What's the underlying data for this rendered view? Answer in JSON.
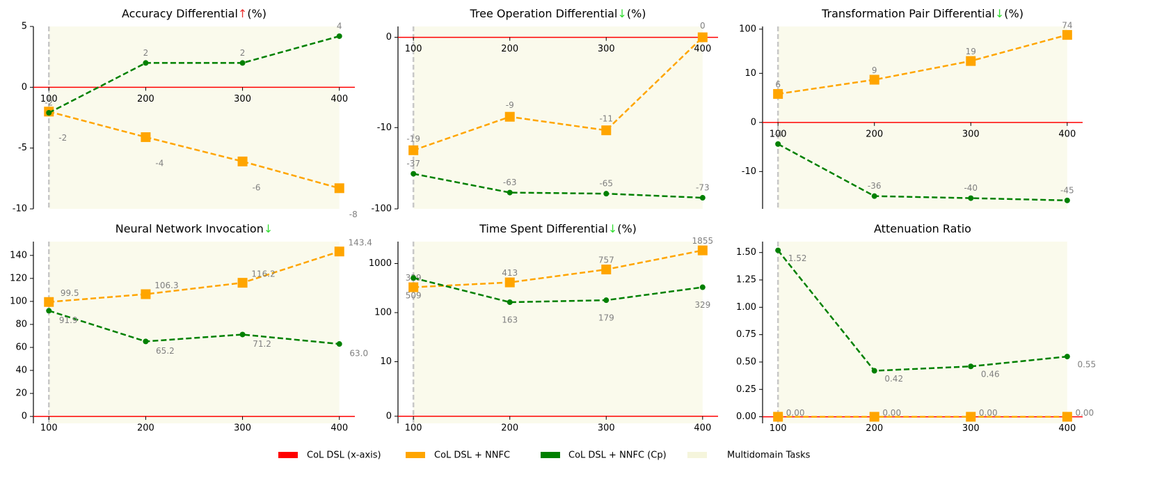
{
  "chart_data": [
    {
      "type": "line",
      "title": "Accuracy Differential",
      "title_arrow": "↑",
      "title_arrow_color": "#e8312f",
      "title_unit": "(%)",
      "x": [
        100,
        200,
        300,
        400
      ],
      "xlim": [
        84,
        416
      ],
      "xticks": [
        100,
        200,
        300,
        400
      ],
      "span": [
        100,
        400
      ],
      "vline": 100,
      "yscale": "linear",
      "ylim": [
        -10,
        5
      ],
      "yticks": [
        -10,
        -5,
        0,
        5
      ],
      "series": [
        {
          "color": "#ffa500",
          "marker": "square",
          "values": [
            -2,
            -4.1,
            -6.1,
            -8.3
          ],
          "value_labels": [
            "-2",
            "-4",
            "-6",
            "-8"
          ]
        },
        {
          "color": "#008000",
          "marker": "circle",
          "values": [
            -2.1,
            2,
            2,
            4.2
          ],
          "value_labels": [
            "-2",
            "2",
            "2",
            "4"
          ]
        }
      ]
    },
    {
      "type": "line",
      "title": "Tree Operation Differential",
      "title_arrow": "↓",
      "title_arrow_color": "#33dd33",
      "title_unit": "(%)",
      "x": [
        100,
        200,
        300,
        400
      ],
      "xlim": [
        84,
        416
      ],
      "xticks": [
        100,
        200,
        300,
        400
      ],
      "span": [
        100,
        400
      ],
      "vline": 100,
      "yscale": "symlog",
      "linthresh": 10,
      "ylim": [
        -100,
        1.2
      ],
      "yticks": [
        -100,
        -10,
        0
      ],
      "series": [
        {
          "color": "#ffa500",
          "marker": "square",
          "values": [
            -19,
            -8.8,
            -10.8,
            0
          ],
          "value_labels": [
            "-19",
            "-9",
            "-11",
            "0"
          ]
        },
        {
          "color": "#008000",
          "marker": "circle",
          "values": [
            -37,
            -63,
            -65,
            -73
          ],
          "value_labels": [
            "-37",
            "-63",
            "-65",
            "-73"
          ]
        }
      ]
    },
    {
      "type": "line",
      "title": "Transformation Pair Differential",
      "title_arrow": "↓",
      "title_arrow_color": "#33dd33",
      "title_unit": "(%)",
      "x": [
        100,
        200,
        300,
        400
      ],
      "xlim": [
        84,
        416
      ],
      "xticks": [
        100,
        200,
        300,
        400
      ],
      "span": [
        100,
        400
      ],
      "vline": 100,
      "yscale": "symlog",
      "linthresh": 10,
      "ylim": [
        -70,
        115
      ],
      "yticks": [
        -10,
        0,
        10,
        100
      ],
      "series": [
        {
          "color": "#ffa500",
          "marker": "square",
          "values": [
            5.8,
            8.7,
            19,
            74
          ],
          "value_labels": [
            "6",
            "9",
            "19",
            "74"
          ]
        },
        {
          "color": "#008000",
          "marker": "circle",
          "values": [
            -4.4,
            -36,
            -40,
            -45
          ],
          "value_labels": [
            "-4",
            "-36",
            "-40",
            "-45"
          ]
        }
      ]
    },
    {
      "type": "line",
      "title": "Neural Network Invocation",
      "title_arrow": "↓",
      "title_arrow_color": "#33dd33",
      "x": [
        100,
        200,
        300,
        400
      ],
      "xlim": [
        84,
        416
      ],
      "xticks": [
        100,
        200,
        300,
        400
      ],
      "span": [
        100,
        400
      ],
      "vline": 100,
      "yscale": "linear",
      "ylim": [
        -6,
        152
      ],
      "yticks": [
        0,
        20,
        40,
        60,
        80,
        100,
        120,
        140
      ],
      "series": [
        {
          "color": "#ffa500",
          "marker": "square",
          "values": [
            99.5,
            106.3,
            116.2,
            143.4
          ],
          "value_labels": [
            "99.5",
            "106.3",
            "116.2",
            "143.4"
          ]
        },
        {
          "color": "#008000",
          "marker": "circle",
          "values": [
            91.9,
            65.2,
            71.2,
            63.0
          ],
          "value_labels": [
            "91.9",
            "65.2",
            "71.2",
            "63.0"
          ]
        }
      ]
    },
    {
      "type": "line",
      "title": "Time Spent Differential",
      "title_arrow": "↓",
      "title_arrow_color": "#33dd33",
      "title_unit": "(%)",
      "x": [
        100,
        200,
        300,
        400
      ],
      "xlim": [
        84,
        416
      ],
      "xticks": [
        100,
        200,
        300,
        400
      ],
      "span": [
        100,
        400
      ],
      "vline": 100,
      "yscale": "symlog",
      "linthresh": 10,
      "ylim": [
        -1.3,
        2800
      ],
      "yticks": [
        0,
        10,
        100,
        1000
      ],
      "series": [
        {
          "color": "#ffa500",
          "marker": "square",
          "values": [
            329,
            413,
            757,
            1855
          ],
          "value_labels": [
            "329",
            "413",
            "757",
            "1855"
          ]
        },
        {
          "color": "#008000",
          "marker": "circle",
          "values": [
            509,
            163,
            179,
            329
          ],
          "value_labels": [
            "509",
            "163",
            "179",
            "329"
          ]
        }
      ]
    },
    {
      "type": "line",
      "title": "Attenuation Ratio",
      "x": [
        100,
        200,
        300,
        400
      ],
      "xlim": [
        84,
        416
      ],
      "xticks": [
        100,
        200,
        300,
        400
      ],
      "span": [
        100,
        400
      ],
      "vline": 100,
      "yscale": "linear",
      "ylim": [
        -0.06,
        1.6
      ],
      "yticks": [
        {
          "value": 0,
          "label": "0.00"
        },
        {
          "value": 0.25,
          "label": "0.25"
        },
        {
          "value": 0.5,
          "label": "0.50"
        },
        {
          "value": 0.75,
          "label": "0.75"
        },
        {
          "value": 1,
          "label": "1.00"
        },
        {
          "value": 1.25,
          "label": "1.25"
        },
        {
          "value": 1.5,
          "label": "1.50"
        }
      ],
      "series": [
        {
          "color": "#ffa500",
          "marker": "square",
          "values": [
            0,
            0,
            0,
            0
          ],
          "value_labels": [
            "0.00",
            "0.00",
            "0.00",
            "0.00"
          ]
        },
        {
          "color": "#008000",
          "marker": "circle",
          "values": [
            1.52,
            0.42,
            0.46,
            0.55
          ],
          "value_labels": [
            "1.52",
            "0.42",
            "0.46",
            "0.55"
          ]
        }
      ]
    }
  ],
  "legend": [
    {
      "name": "CoL DSL (x-axis)",
      "color": "#ff0000"
    },
    {
      "name": "CoL DSL + NNFC",
      "color": "#ffa500"
    },
    {
      "name": "CoL DSL + NNFC (Cp)",
      "color": "#008000"
    },
    {
      "name": "Multidomain Tasks",
      "color": "#f5f5dc"
    }
  ]
}
